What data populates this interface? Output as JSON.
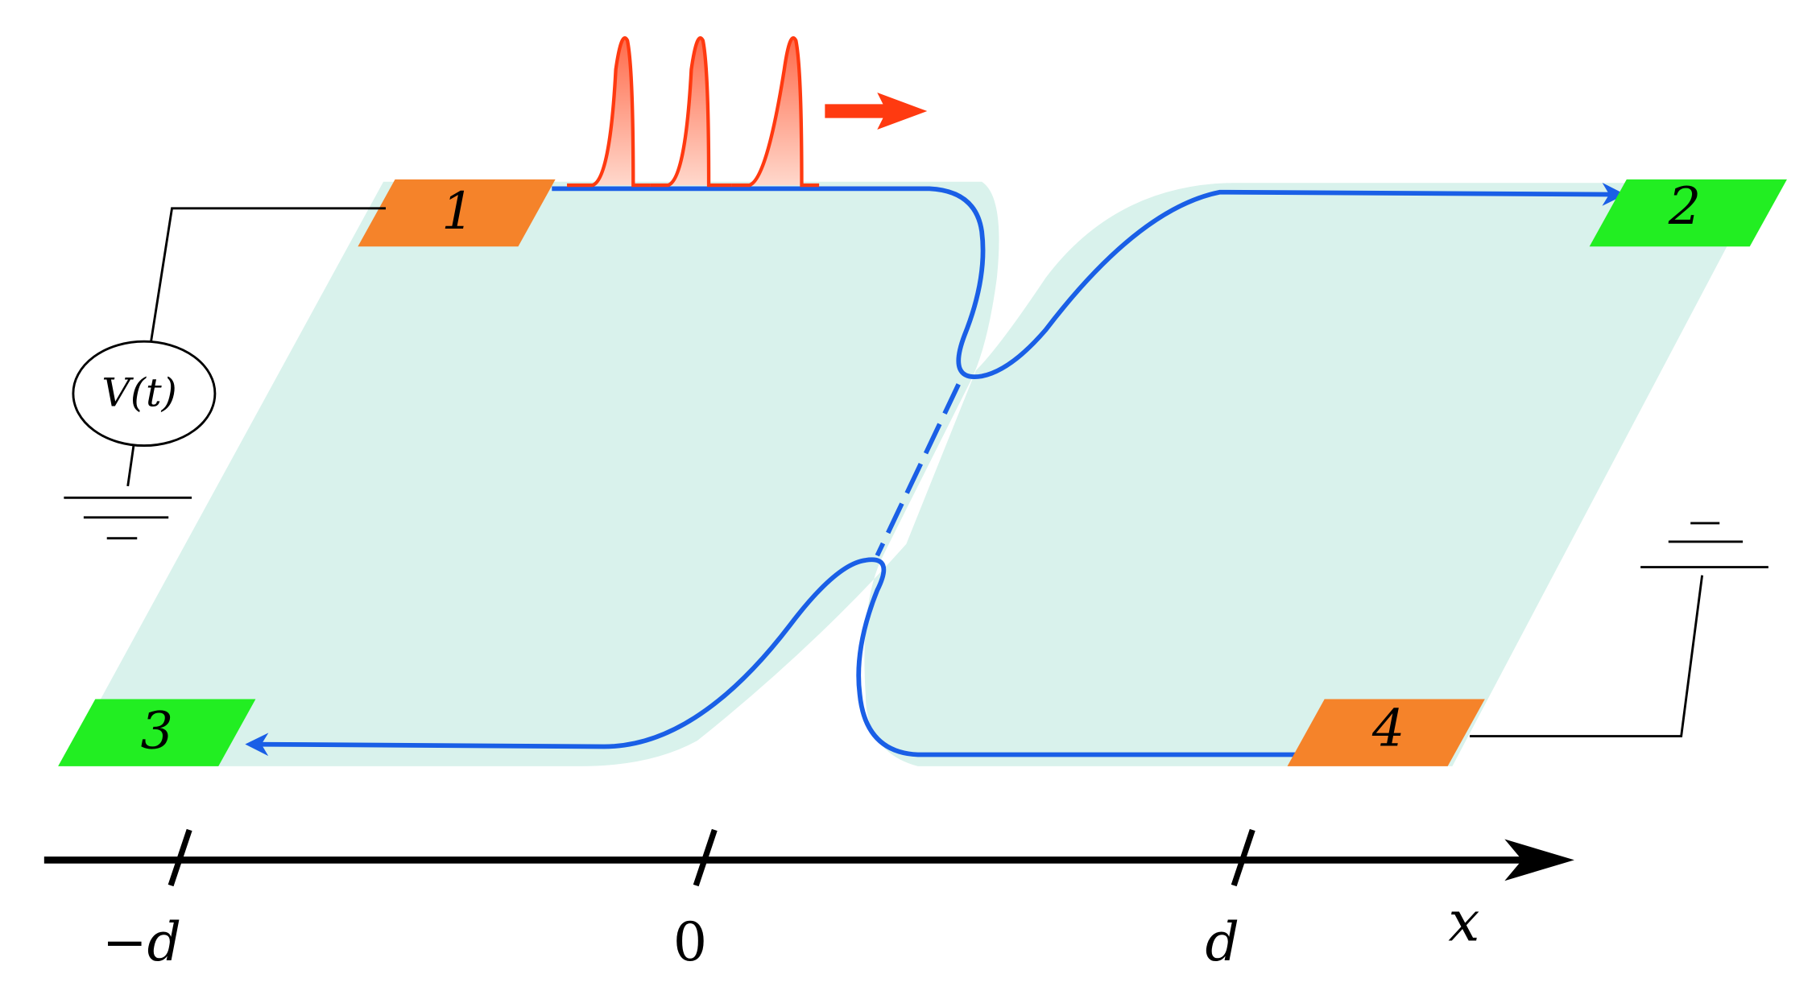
{
  "contacts": [
    {
      "label": "1"
    },
    {
      "label": "2"
    },
    {
      "label": "3"
    },
    {
      "label": "4"
    }
  ],
  "source": {
    "label": "V(t)"
  },
  "axis": {
    "label": "x",
    "ticks": [
      "−d",
      "0",
      "d"
    ]
  }
}
